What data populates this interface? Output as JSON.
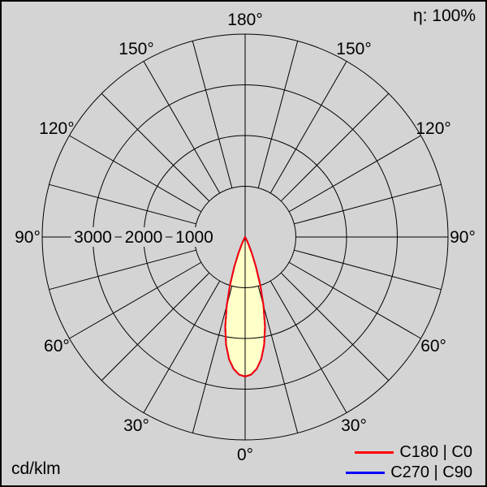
{
  "meta": {
    "background": "#d4d4d4",
    "border_color": "#000000",
    "text_color": "#000000"
  },
  "header": {
    "efficiency": "η: 100%"
  },
  "footer": {
    "units": "cd/klm"
  },
  "legend": [
    {
      "label": "C180 | C0",
      "color": "#ff0000"
    },
    {
      "label": "C270 | C90",
      "color": "#0000ff"
    }
  ],
  "chart_data": {
    "type": "line",
    "subtype": "polar-photometric-intensity",
    "title": "",
    "units": "cd/klm",
    "efficiency": "η: 100%",
    "grid": true,
    "legend_position": "bottom-right",
    "angle_tick_step_deg": 15,
    "angle_labels": [
      "0°",
      "30°",
      "60°",
      "90°",
      "120°",
      "150°",
      "180°"
    ],
    "angle_labels_deg": [
      0,
      30,
      60,
      90,
      120,
      150,
      180
    ],
    "radial_ticks": {
      "values": [
        3000,
        2000,
        1000
      ],
      "unit": "cd/klm"
    },
    "r_axis": {
      "min": 0,
      "max": 4000,
      "ring_step": 1000,
      "hub": 1000
    },
    "series": [
      {
        "name": "C270 | C90",
        "color": "#0000ff",
        "symmetric": true,
        "gamma_deg": [
          0,
          2.5,
          5,
          7.5,
          10,
          12.5,
          15,
          17.5,
          20,
          22.5,
          25,
          27.5,
          30
        ],
        "values": [
          2750,
          2715,
          2610,
          2430,
          2160,
          1810,
          1400,
          990,
          620,
          340,
          155,
          55,
          0
        ]
      },
      {
        "name": "C180 | C0",
        "color": "#ff0000",
        "fill": "#ffffc8",
        "symmetric": true,
        "gamma_deg": [
          0,
          2.5,
          5,
          7.5,
          10,
          12.5,
          15,
          17.5,
          20,
          22.5,
          25,
          27.5,
          30
        ],
        "values": [
          2750,
          2715,
          2610,
          2430,
          2160,
          1810,
          1400,
          990,
          620,
          340,
          155,
          55,
          0
        ]
      }
    ]
  }
}
